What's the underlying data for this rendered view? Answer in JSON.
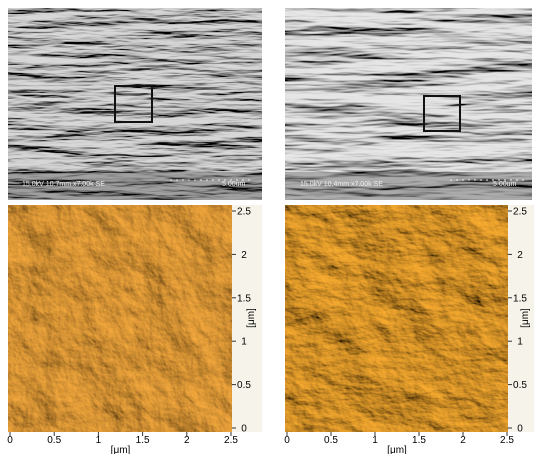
{
  "sem": [
    {
      "info": "15.0kV 10.7mm x7.00k SE",
      "scale_bar": "5.00um"
    },
    {
      "info": "15.0kV 10.4mm x7.00k SE",
      "scale_bar": "5.00um"
    }
  ],
  "afm": [
    {
      "x_ticks": [
        "0",
        "0.5",
        "1",
        "1.5",
        "2",
        "2.5"
      ],
      "y_ticks": [
        "0",
        "0.5",
        "1",
        "1.5",
        "2",
        "2.5"
      ],
      "x_unit": "[μm]",
      "y_unit": "[μm]"
    },
    {
      "x_ticks": [
        "0",
        "0.5",
        "1",
        "1.5",
        "2",
        "2.5"
      ],
      "y_ticks": [
        "0",
        "0.5",
        "1",
        "1.5",
        "2",
        "2.5"
      ],
      "x_unit": "[μm]",
      "y_unit": "[μm]"
    }
  ]
}
